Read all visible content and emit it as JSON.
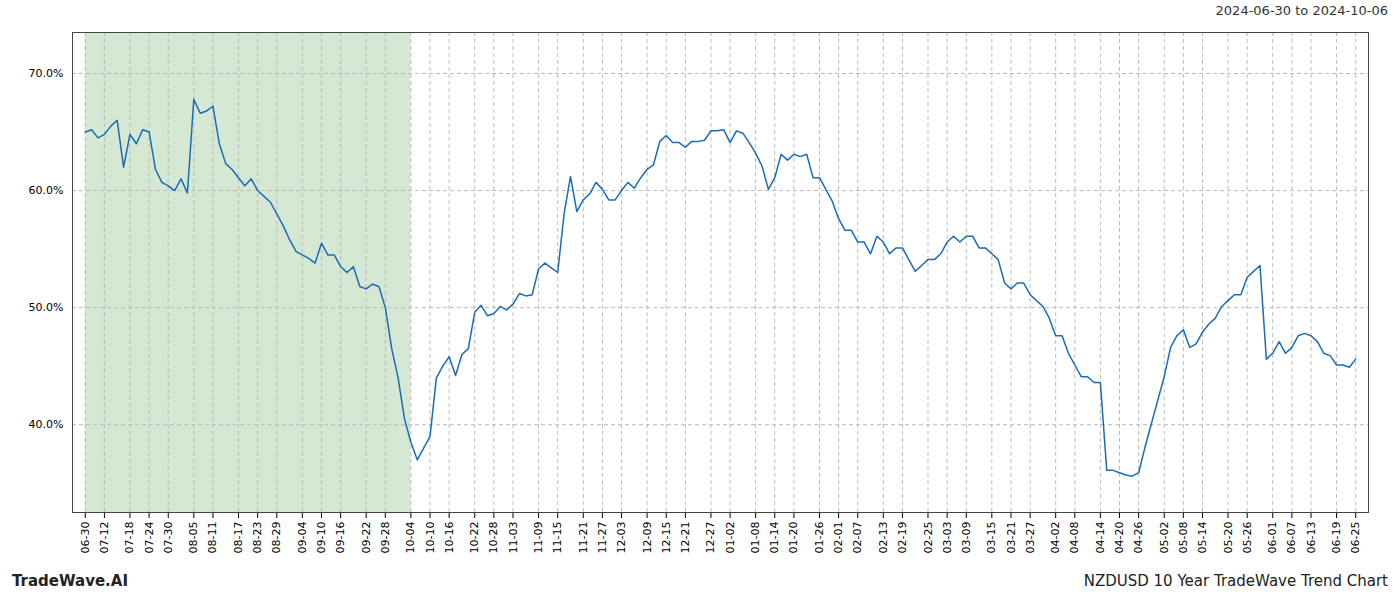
{
  "chart_data": {
    "type": "line",
    "title": "NZDUSD 10 Year TradeWave Trend Chart",
    "subtitle": "2024-06-30 to 2024-10-06",
    "annotations": [
      "TradeWave.AI"
    ],
    "color": "#1a6cb5",
    "grid": true,
    "shaded_region": {
      "start": "06-30",
      "end": "10-04",
      "color": "#d5e8d4"
    },
    "ylim": [
      0.325,
      0.735
    ],
    "yticks": [
      {
        "value": 0.4,
        "label": "40.0%"
      },
      {
        "value": 0.5,
        "label": "50.0%"
      },
      {
        "value": 0.6,
        "label": "60.0%"
      },
      {
        "value": 0.7,
        "label": "70.0%"
      }
    ],
    "categories": [
      "06-30",
      null,
      null,
      "07-12",
      null,
      null,
      null,
      "07-18",
      null,
      null,
      "07-24",
      null,
      null,
      "07-30",
      null,
      null,
      null,
      "08-05",
      null,
      null,
      "08-11",
      null,
      null,
      null,
      "08-17",
      null,
      null,
      "08-23",
      null,
      null,
      "08-29",
      null,
      null,
      null,
      "09-04",
      null,
      null,
      "09-10",
      null,
      null,
      "09-16",
      null,
      null,
      null,
      "09-22",
      null,
      null,
      "09-28",
      null,
      null,
      null,
      "10-04",
      null,
      null,
      "10-10",
      null,
      null,
      "10-16",
      null,
      null,
      null,
      "10-22",
      null,
      null,
      "10-28",
      null,
      null,
      "11-03",
      null,
      null,
      null,
      "11-09",
      null,
      null,
      "11-15",
      null,
      null,
      null,
      "11-21",
      null,
      null,
      "11-27",
      null,
      null,
      "12-03",
      null,
      null,
      null,
      "12-09",
      null,
      null,
      "12-15",
      null,
      null,
      "12-21",
      null,
      null,
      null,
      "12-27",
      null,
      null,
      "01-02",
      null,
      null,
      null,
      "01-08",
      null,
      null,
      "01-14",
      null,
      null,
      "01-20",
      null,
      null,
      null,
      "01-26",
      null,
      null,
      "02-01",
      null,
      null,
      "02-07",
      null,
      null,
      null,
      "02-13",
      null,
      null,
      "02-19",
      null,
      null,
      null,
      "02-25",
      null,
      null,
      "03-03",
      null,
      null,
      "03-09",
      null,
      null,
      null,
      "03-15",
      null,
      null,
      "03-21",
      null,
      null,
      "03-27",
      null,
      null,
      null,
      "04-02",
      null,
      null,
      "04-08",
      null,
      null,
      null,
      "04-14",
      null,
      null,
      "04-20",
      null,
      null,
      "04-26",
      null,
      null,
      null,
      "05-02",
      null,
      null,
      "05-08",
      null,
      null,
      "05-14",
      null,
      null,
      null,
      "05-20",
      null,
      null,
      "05-26",
      null,
      null,
      null,
      "06-01",
      null,
      null,
      "06-07",
      null,
      null,
      "06-13",
      null,
      null,
      null,
      "06-19",
      null,
      null,
      "06-25"
    ],
    "values": [
      0.65,
      0.652,
      0.645,
      0.648,
      0.655,
      0.66,
      0.62,
      0.648,
      0.64,
      0.652,
      0.65,
      0.618,
      0.607,
      0.604,
      0.6,
      0.61,
      0.598,
      0.678,
      0.666,
      0.668,
      0.672,
      0.64,
      0.623,
      0.618,
      0.611,
      0.604,
      0.61,
      0.6,
      0.595,
      0.59,
      0.58,
      0.57,
      0.558,
      0.548,
      0.545,
      0.542,
      0.538,
      0.555,
      0.545,
      0.545,
      0.535,
      0.53,
      0.535,
      0.518,
      0.516,
      0.52,
      0.518,
      0.5,
      0.465,
      0.44,
      0.405,
      0.385,
      0.37,
      0.38,
      0.39,
      0.44,
      0.45,
      0.458,
      0.442,
      0.46,
      0.465,
      0.496,
      0.502,
      0.493,
      0.495,
      0.501,
      0.498,
      0.503,
      0.512,
      0.51,
      0.511,
      0.533,
      0.538,
      0.534,
      0.53,
      0.58,
      0.612,
      0.582,
      0.592,
      0.597,
      0.607,
      0.601,
      0.592,
      0.592,
      0.6,
      0.607,
      0.602,
      0.611,
      0.618,
      0.622,
      0.642,
      0.647,
      0.641,
      0.641,
      0.637,
      0.642,
      0.642,
      0.643,
      0.651,
      0.651,
      0.652,
      0.641,
      0.651,
      0.649,
      0.641,
      0.632,
      0.621,
      0.601,
      0.611,
      0.631,
      0.626,
      0.631,
      0.629,
      0.631,
      0.611,
      0.611,
      0.601,
      0.591,
      0.576,
      0.566,
      0.566,
      0.556,
      0.556,
      0.546,
      0.561,
      0.556,
      0.546,
      0.551,
      0.551,
      0.541,
      0.531,
      0.536,
      0.541,
      0.541,
      0.546,
      0.556,
      0.561,
      0.556,
      0.561,
      0.561,
      0.551,
      0.551,
      0.546,
      0.541,
      0.521,
      0.516,
      0.521,
      0.521,
      0.511,
      0.506,
      0.501,
      0.491,
      0.476,
      0.476,
      0.461,
      0.451,
      0.441,
      0.441,
      0.436,
      0.436,
      0.361,
      0.361,
      0.359,
      0.357,
      0.356,
      0.359,
      0.381,
      0.401,
      0.421,
      0.441,
      0.466,
      0.476,
      0.481,
      0.466,
      0.469,
      0.479,
      0.486,
      0.491,
      0.501,
      0.506,
      0.511,
      0.511,
      0.526,
      0.531,
      0.536,
      0.456,
      0.461,
      0.471,
      0.461,
      0.466,
      0.476,
      0.478,
      0.476,
      0.471,
      0.461,
      0.459,
      0.451,
      0.451,
      0.449,
      0.456
    ]
  }
}
